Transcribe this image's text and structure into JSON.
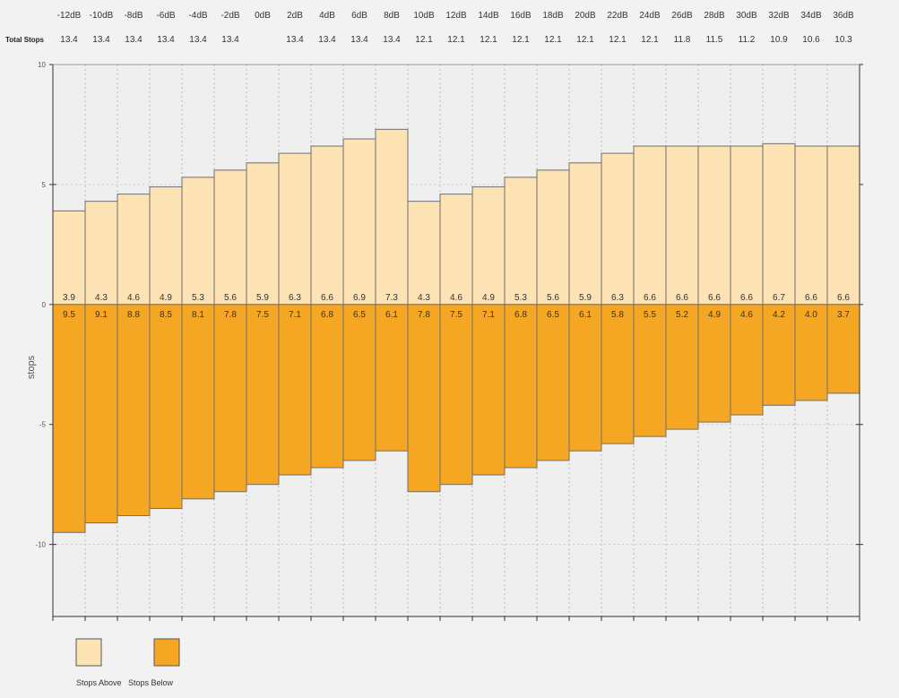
{
  "chart_data": {
    "type": "bar",
    "stacking": "floating-stacked",
    "top_row_label": "Total Stops",
    "ylabel": "stops",
    "ylim": [
      -13,
      10
    ],
    "yticks": [
      10,
      5,
      0,
      -5,
      -10
    ],
    "grid": true,
    "legend": {
      "placement": "bottom-left",
      "entries": [
        {
          "name": "Stops Above",
          "color": "#fde2b3"
        },
        {
          "name": "Stops Below",
          "color": "#f5a623"
        }
      ]
    },
    "columns": [
      {
        "db": "-12dB",
        "total": "13.4",
        "above": 3.9,
        "below": 9.5
      },
      {
        "db": "-10dB",
        "total": "13.4",
        "above": 4.3,
        "below": 9.1
      },
      {
        "db": "-8dB",
        "total": "13.4",
        "above": 4.6,
        "below": 8.8
      },
      {
        "db": "-6dB",
        "total": "13.4",
        "above": 4.9,
        "below": 8.5
      },
      {
        "db": "-4dB",
        "total": "13.4",
        "above": 5.3,
        "below": 8.1
      },
      {
        "db": "-2dB",
        "total": "13.4",
        "above": 5.6,
        "below": 7.8
      },
      {
        "db": "0dB",
        "total": "",
        "above": 5.9,
        "below": 7.5
      },
      {
        "db": "2dB",
        "total": "13.4",
        "above": 6.3,
        "below": 7.1
      },
      {
        "db": "4dB",
        "total": "13.4",
        "above": 6.6,
        "below": 6.8
      },
      {
        "db": "6dB",
        "total": "13.4",
        "above": 6.9,
        "below": 6.5
      },
      {
        "db": "8dB",
        "total": "13.4",
        "above": 7.3,
        "below": 6.1
      },
      {
        "db": "10dB",
        "total": "12.1",
        "above": 4.3,
        "below": 7.8
      },
      {
        "db": "12dB",
        "total": "12.1",
        "above": 4.6,
        "below": 7.5
      },
      {
        "db": "14dB",
        "total": "12.1",
        "above": 4.9,
        "below": 7.1
      },
      {
        "db": "16dB",
        "total": "12.1",
        "above": 5.3,
        "below": 6.8
      },
      {
        "db": "18dB",
        "total": "12.1",
        "above": 5.6,
        "below": 6.5
      },
      {
        "db": "20dB",
        "total": "12.1",
        "above": 5.9,
        "below": 6.1
      },
      {
        "db": "22dB",
        "total": "12.1",
        "above": 6.3,
        "below": 5.8
      },
      {
        "db": "24dB",
        "total": "12.1",
        "above": 6.6,
        "below": 5.5
      },
      {
        "db": "26dB",
        "total": "11.8",
        "above": 6.6,
        "below": 5.2
      },
      {
        "db": "28dB",
        "total": "11.5",
        "above": 6.6,
        "below": 4.9
      },
      {
        "db": "30dB",
        "total": "11.2",
        "above": 6.6,
        "below": 4.6
      },
      {
        "db": "32dB",
        "total": "10.9",
        "above": 6.7,
        "below": 4.2
      },
      {
        "db": "34dB",
        "total": "10.6",
        "above": 6.6,
        "below": 4.0
      },
      {
        "db": "36dB",
        "total": "10.3",
        "above": 6.6,
        "below": 3.7
      }
    ]
  }
}
